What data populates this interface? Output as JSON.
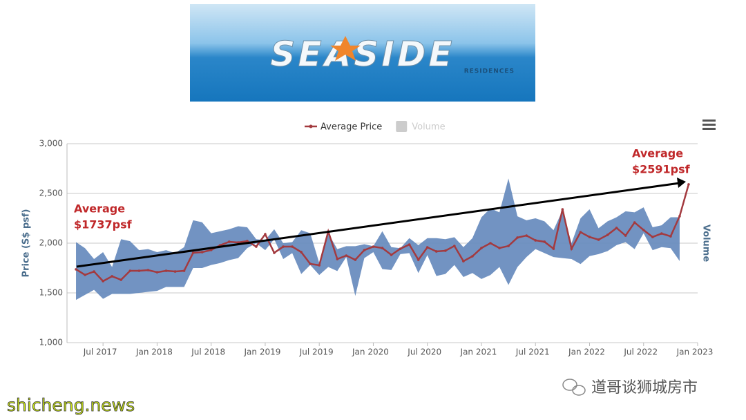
{
  "logo": {
    "title": "SEASIDE",
    "subtitle": "RESIDENCES"
  },
  "chart_data": {
    "type": "line",
    "y_label": "Price (S$ psf)",
    "y2_label": "Volume",
    "x": [
      "2017-04",
      "2017-05",
      "2017-06",
      "2017-07",
      "2017-08",
      "2017-09",
      "2017-10",
      "2017-11",
      "2017-12",
      "2018-01",
      "2018-02",
      "2018-03",
      "2018-04",
      "2018-05",
      "2018-06",
      "2018-07",
      "2018-08",
      "2018-09",
      "2018-10",
      "2018-11",
      "2018-12",
      "2019-01",
      "2019-02",
      "2019-03",
      "2019-04",
      "2019-05",
      "2019-06",
      "2019-07",
      "2019-08",
      "2019-09",
      "2019-10",
      "2019-11",
      "2019-12",
      "2020-01",
      "2020-02",
      "2020-03",
      "2020-04",
      "2020-05",
      "2020-06",
      "2020-07",
      "2020-08",
      "2020-09",
      "2020-10",
      "2020-11",
      "2020-12",
      "2021-01",
      "2021-02",
      "2021-03",
      "2021-04",
      "2021-05",
      "2021-06",
      "2021-07",
      "2021-08",
      "2021-09",
      "2021-10",
      "2021-11",
      "2021-12",
      "2022-01",
      "2022-02",
      "2022-03",
      "2022-04",
      "2022-05",
      "2022-06",
      "2022-07",
      "2022-08",
      "2022-09",
      "2022-10",
      "2022-11",
      "2022-12"
    ],
    "series": [
      {
        "name": "Average Price",
        "color": "#a33a3f",
        "visible": true,
        "values": [
          1737,
          1681,
          1715,
          1618,
          1667,
          1632,
          1722,
          1722,
          1729,
          1708,
          1722,
          1715,
          1722,
          1903,
          1910,
          1931,
          1979,
          2014,
          2007,
          2021,
          1965,
          2090,
          1903,
          1965,
          1965,
          1910,
          1792,
          1778,
          2118,
          1840,
          1875,
          1833,
          1930,
          1965,
          1951,
          1882,
          1944,
          1986,
          1833,
          1958,
          1917,
          1924,
          1972,
          1819,
          1868,
          1951,
          2000,
          1951,
          1972,
          2056,
          2076,
          2028,
          2014,
          1944,
          2340,
          1944,
          2111,
          2062,
          2035,
          2083,
          2153,
          2076,
          2208,
          2132,
          2062,
          2097,
          2069,
          2271,
          2591
        ]
      },
      {
        "name": "Volume",
        "color": "#cccccc",
        "visible": false
      }
    ],
    "range": {
      "color": "#6a8dbf",
      "high": [
        2010,
        1950,
        1840,
        1910,
        1760,
        2040,
        2020,
        1930,
        1940,
        1910,
        1930,
        1900,
        1960,
        2230,
        2210,
        2100,
        2120,
        2140,
        2170,
        2160,
        2040,
        2030,
        2140,
        2000,
        2010,
        2130,
        2100,
        1800,
        2100,
        1940,
        1970,
        1970,
        1990,
        1970,
        2120,
        1960,
        1950,
        2050,
        1980,
        2050,
        2050,
        2040,
        2060,
        1960,
        2050,
        2260,
        2350,
        2310,
        2650,
        2270,
        2230,
        2250,
        2220,
        2130,
        2330,
        2000,
        2250,
        2340,
        2150,
        2220,
        2260,
        2320,
        2310,
        2360,
        2160,
        2180,
        2260,
        2260,
        null
      ],
      "low": [
        1430,
        1480,
        1530,
        1440,
        1490,
        1490,
        1490,
        1500,
        1510,
        1520,
        1560,
        1560,
        1560,
        1750,
        1750,
        1780,
        1800,
        1830,
        1850,
        1950,
        2000,
        1930,
        2040,
        1840,
        1900,
        1690,
        1780,
        1680,
        1760,
        1720,
        1860,
        1470,
        1850,
        1910,
        1740,
        1730,
        1890,
        1900,
        1700,
        1880,
        1670,
        1690,
        1780,
        1660,
        1700,
        1640,
        1680,
        1760,
        1580,
        1760,
        1860,
        1940,
        1900,
        1860,
        1850,
        1840,
        1790,
        1870,
        1890,
        1920,
        1980,
        2010,
        1940,
        2100,
        1930,
        1960,
        1950,
        1820,
        null
      ]
    },
    "ylim": [
      1000,
      3000
    ],
    "yticks": [
      {
        "value": 1000,
        "label": "1,000"
      },
      {
        "value": 1500,
        "label": "1,500"
      },
      {
        "value": 2000,
        "label": "2,000"
      },
      {
        "value": 2500,
        "label": "2,500"
      },
      {
        "value": 3000,
        "label": "3,000"
      }
    ],
    "xlim": [
      "2017-03",
      "2023-01"
    ],
    "xticks": [
      {
        "value": "2017-07",
        "label": "Jul 2017"
      },
      {
        "value": "2018-01",
        "label": "Jan 2018"
      },
      {
        "value": "2018-07",
        "label": "Jul 2018"
      },
      {
        "value": "2019-01",
        "label": "Jan 2019"
      },
      {
        "value": "2019-07",
        "label": "Jul 2019"
      },
      {
        "value": "2020-01",
        "label": "Jan 2020"
      },
      {
        "value": "2020-07",
        "label": "Jul 2020"
      },
      {
        "value": "2021-01",
        "label": "Jan 2021"
      },
      {
        "value": "2021-07",
        "label": "Jul 2021"
      },
      {
        "value": "2022-01",
        "label": "Jan 2022"
      },
      {
        "value": "2022-07",
        "label": "Jul 2022"
      },
      {
        "value": "2023-01",
        "label": "Jan 2023"
      }
    ],
    "grid": true,
    "annotations": [
      {
        "lines": [
          "Average",
          "$1737psf"
        ]
      },
      {
        "lines": [
          "Average",
          "$2591psf"
        ]
      }
    ]
  },
  "watermarks": [
    "shicheng.news",
    "道哥谈狮城房市"
  ]
}
